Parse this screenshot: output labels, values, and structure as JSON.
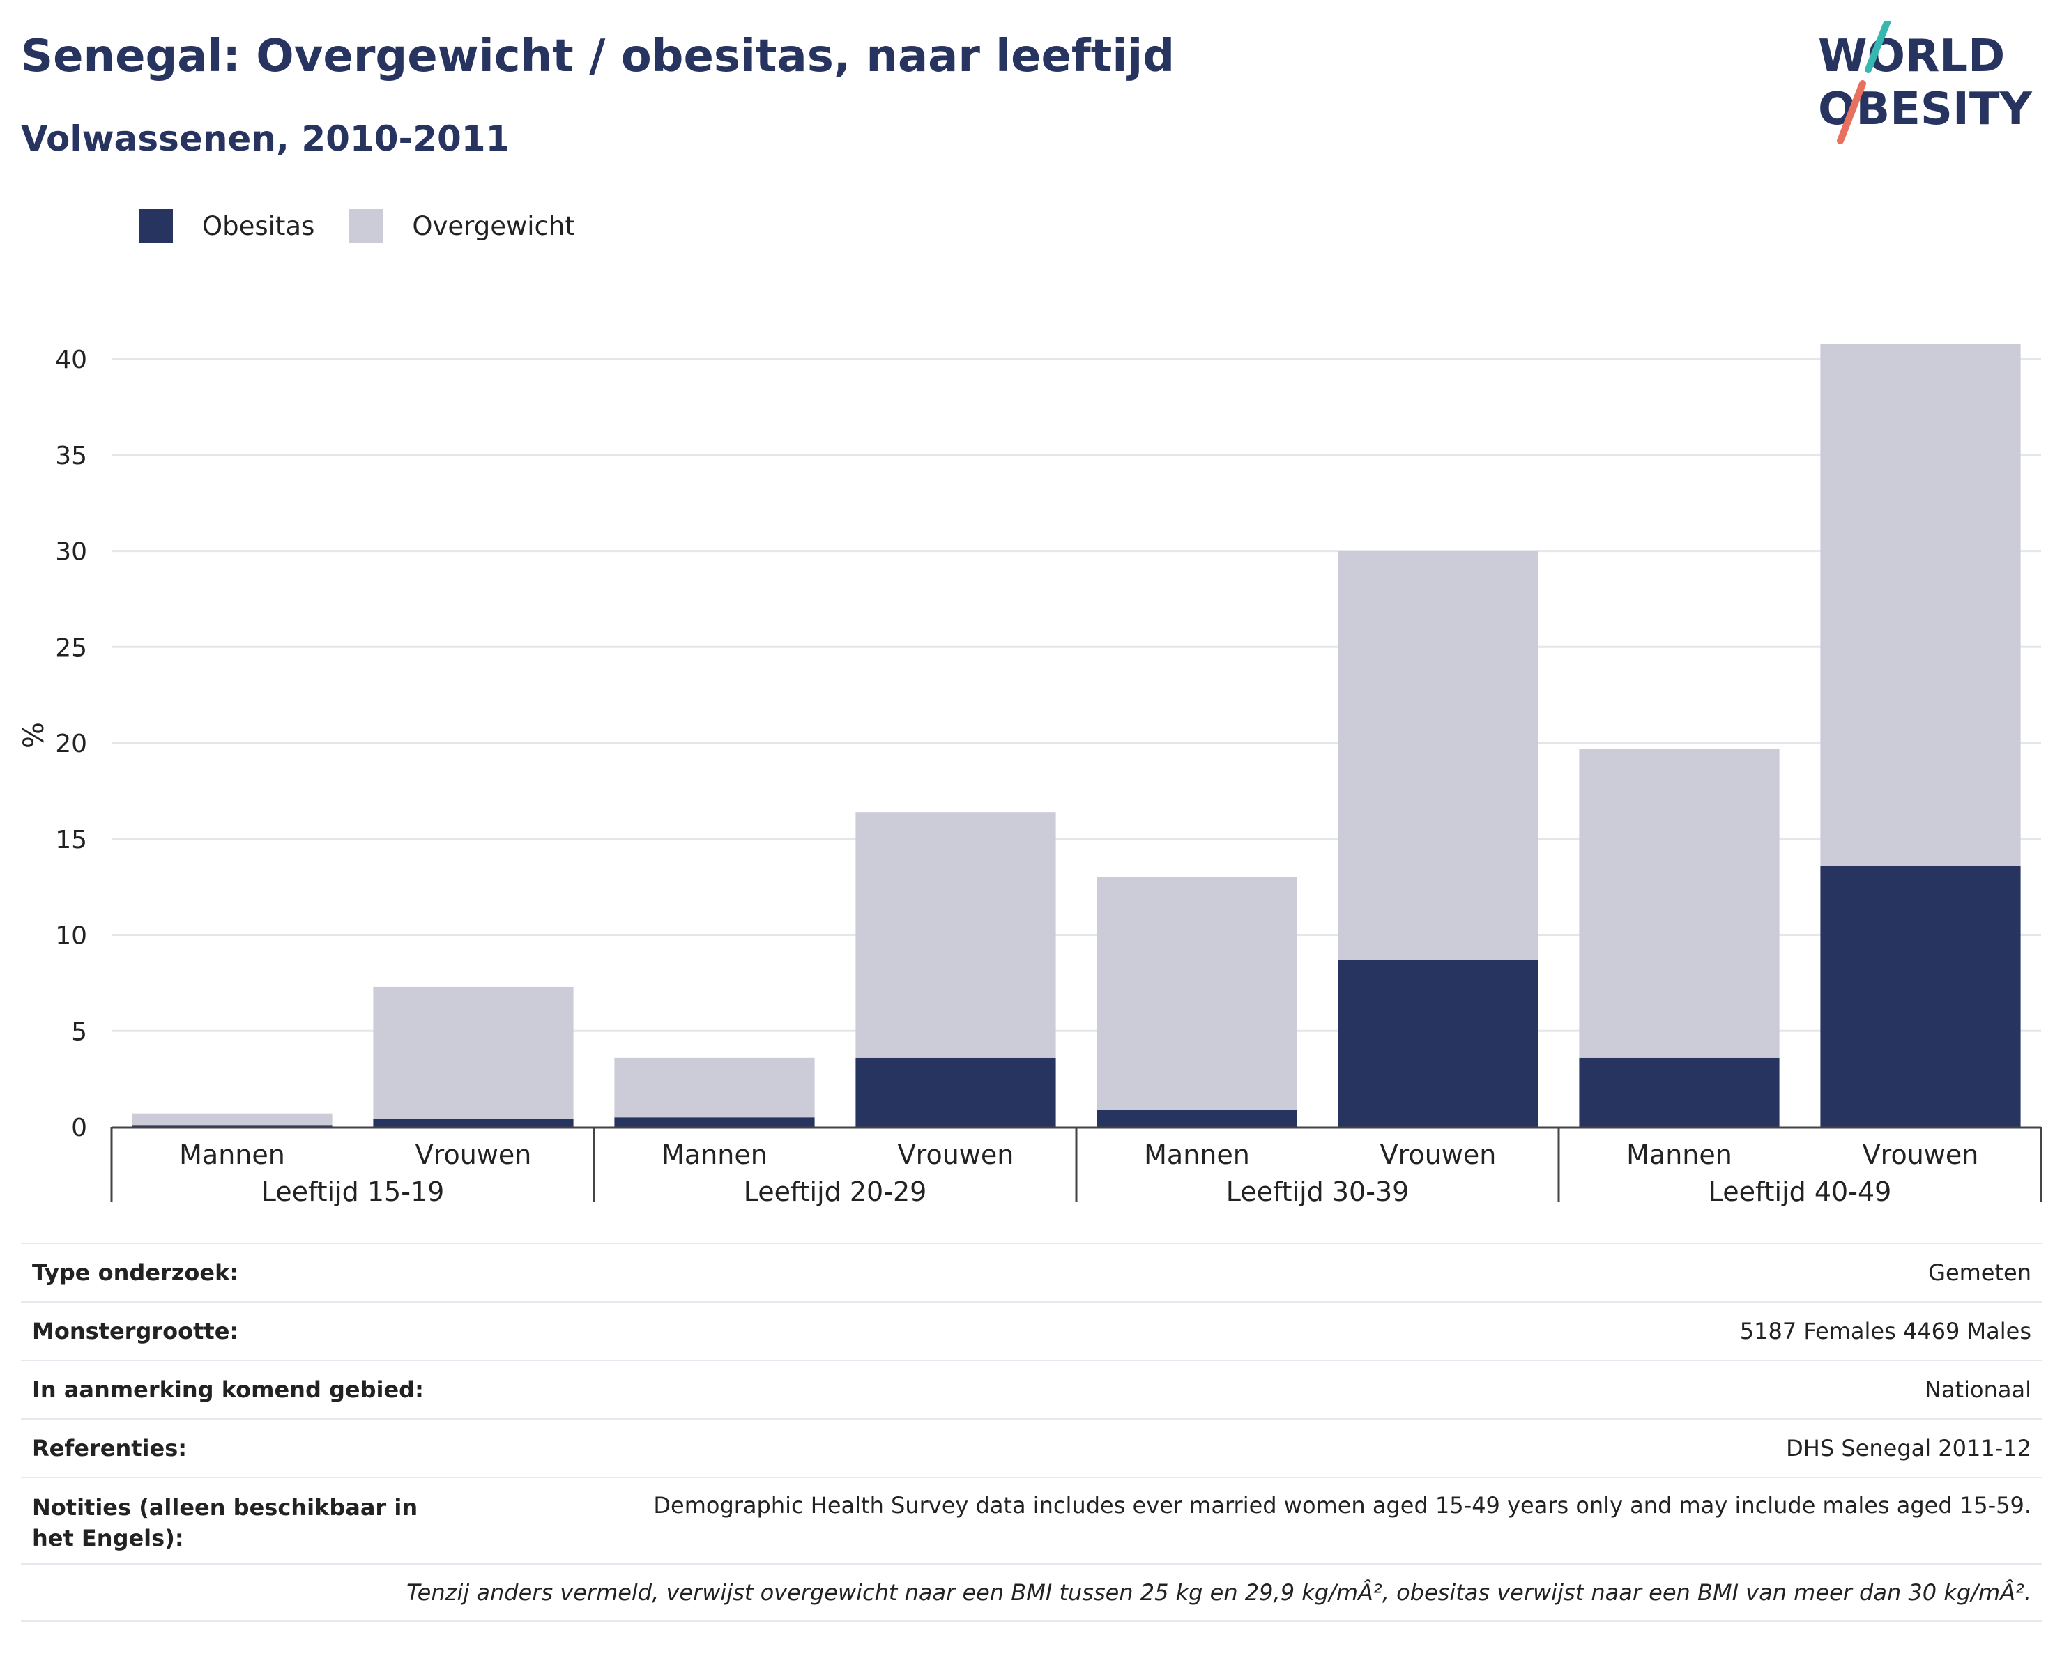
{
  "title": "Senegal: Overgewicht / obesitas, naar leeftijd",
  "subtitle": "Volwassenen, 2010-2011",
  "logo": {
    "line1": "WORLD",
    "line2": "OBESITY"
  },
  "colors": {
    "obesitas": "#283460",
    "overgewicht": "#cbccd8",
    "title": "#283460",
    "logo_teal": "#36b8b0",
    "logo_coral": "#e8705f"
  },
  "legend": [
    {
      "label": "Obesitas",
      "color": "#283460"
    },
    {
      "label": "Overgewicht",
      "color": "#cbccd8"
    }
  ],
  "chart_data": {
    "type": "bar",
    "stacked": true,
    "ylabel": "%",
    "ylim": [
      0,
      42
    ],
    "yticks": [
      0,
      5,
      10,
      15,
      20,
      25,
      30,
      35,
      40
    ],
    "grid": true,
    "legend_position": "top-left",
    "groups": [
      "Leeftijd 15-19",
      "Leeftijd 20-29",
      "Leeftijd 30-39",
      "Leeftijd 40-49"
    ],
    "categories": [
      "Mannen",
      "Vrouwen",
      "Mannen",
      "Vrouwen",
      "Mannen",
      "Vrouwen",
      "Mannen",
      "Vrouwen"
    ],
    "series": [
      {
        "name": "Obesitas",
        "values": [
          0.1,
          0.4,
          0.5,
          3.6,
          0.9,
          8.7,
          3.6,
          13.6
        ]
      },
      {
        "name": "Overgewicht",
        "values": [
          0.6,
          6.9,
          3.1,
          12.8,
          12.1,
          21.3,
          16.1,
          27.2
        ]
      }
    ]
  },
  "info": [
    {
      "key": "Type onderzoek:",
      "value": "Gemeten"
    },
    {
      "key": "Monstergrootte:",
      "value": "5187 Females 4469 Males"
    },
    {
      "key": "In aanmerking komend gebied:",
      "value": "Nationaal"
    },
    {
      "key": "Referenties:",
      "value": "DHS Senegal 2011-12"
    },
    {
      "key": "Notities (alleen beschikbaar in het Engels):",
      "value": "Demographic Health Survey data includes ever married women aged 15-49 years only and may include males aged 15-59."
    }
  ],
  "footnote": "Tenzij anders vermeld, verwijst overgewicht naar een BMI tussen 25 kg en 29,9 kg/mÂ², obesitas verwijst naar een BMI van meer dan 30 kg/mÂ²."
}
